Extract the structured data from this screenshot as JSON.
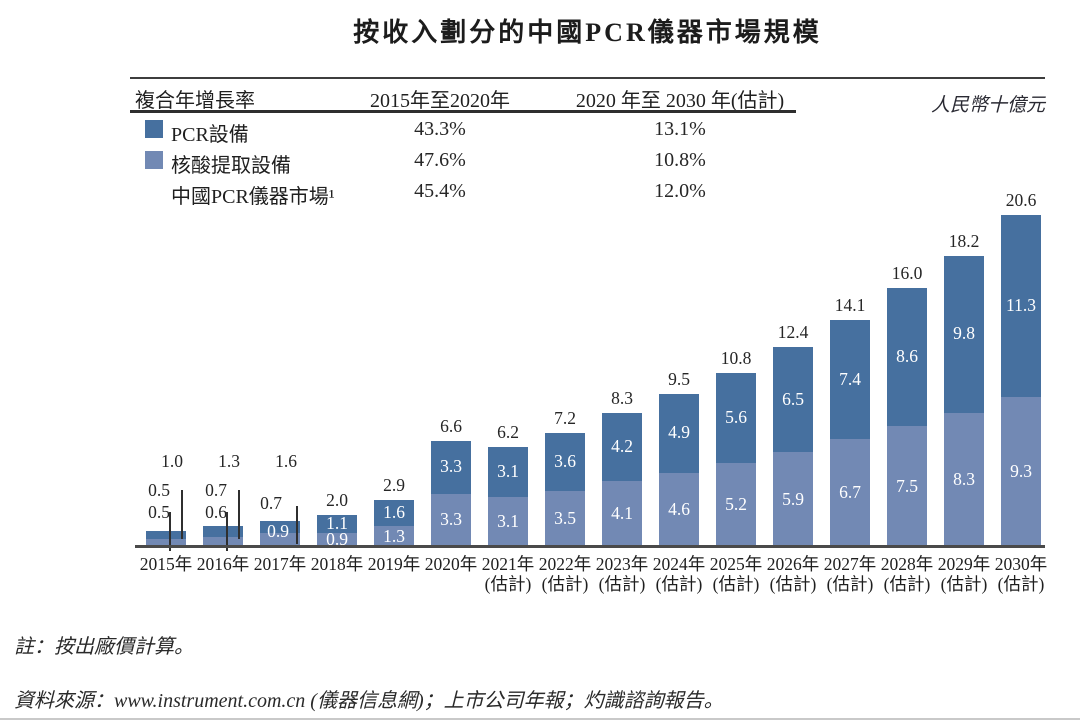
{
  "page": {
    "title": "按收入劃分的中國PCR儀器市場規模",
    "unit_label": "人民幣十億元",
    "note": "註：按出廠價計算。",
    "source": "資料來源：www.instrument.com.cn (儀器信息網)；上市公司年報；灼識諮詢報告。"
  },
  "colors": {
    "pcr": "#46709f",
    "extraction": "#7289b4",
    "axis": "#4a4a4a",
    "label_text": "#262626"
  },
  "cagr_table": {
    "columns": [
      "複合年增長率",
      "2015年至2020年",
      "2020 年至 2030 年(估計)"
    ],
    "rows": [
      {
        "label": "PCR設備",
        "swatch": "pcr",
        "cagr_2015_2020": "43.3%",
        "cagr_2020_2030": "13.1%"
      },
      {
        "label": "核酸提取設備",
        "swatch": "extraction",
        "cagr_2015_2020": "47.6%",
        "cagr_2020_2030": "10.8%"
      },
      {
        "label": "中國PCR儀器市場¹",
        "swatch": "none",
        "cagr_2015_2020": "45.4%",
        "cagr_2020_2030": "12.0%"
      }
    ]
  },
  "chart_data": {
    "type": "bar",
    "stacked": true,
    "title": "按收入劃分的中國PCR儀器市場規模",
    "ylabel": "人民幣十億元",
    "ylim": [
      0,
      20.6
    ],
    "grid": false,
    "categories": [
      {
        "year": "2015年",
        "estimate": false
      },
      {
        "year": "2016年",
        "estimate": false
      },
      {
        "year": "2017年",
        "estimate": false
      },
      {
        "year": "2018年",
        "estimate": false
      },
      {
        "year": "2019年",
        "estimate": false
      },
      {
        "year": "2020年",
        "estimate": false
      },
      {
        "year": "2021年",
        "estimate": true
      },
      {
        "year": "2022年",
        "estimate": true
      },
      {
        "year": "2023年",
        "estimate": true
      },
      {
        "year": "2024年",
        "estimate": true
      },
      {
        "year": "2025年",
        "estimate": true
      },
      {
        "year": "2026年",
        "estimate": true
      },
      {
        "year": "2027年",
        "estimate": true
      },
      {
        "year": "2028年",
        "estimate": true
      },
      {
        "year": "2029年",
        "estimate": true
      },
      {
        "year": "2030年",
        "estimate": true
      }
    ],
    "estimate_suffix": "(估計)",
    "series": [
      {
        "name": "PCR設備",
        "stack_position": "top",
        "color_key": "pcr",
        "values": [
          0.5,
          0.7,
          0.7,
          1.1,
          1.6,
          3.3,
          3.1,
          3.6,
          4.2,
          4.9,
          5.6,
          6.5,
          7.4,
          8.6,
          9.8,
          11.3
        ]
      },
      {
        "name": "核酸提取設備",
        "stack_position": "bottom",
        "color_key": "extraction",
        "values": [
          0.5,
          0.6,
          0.9,
          0.9,
          1.3,
          3.3,
          3.1,
          3.5,
          4.1,
          4.6,
          5.2,
          5.9,
          6.7,
          7.5,
          8.3,
          9.3
        ]
      }
    ],
    "totals": [
      1.0,
      1.3,
      1.6,
      2.0,
      2.9,
      6.6,
      6.2,
      7.2,
      8.3,
      9.5,
      10.8,
      12.4,
      14.1,
      16.0,
      18.2,
      20.6
    ],
    "value_label_layout": [
      "outside",
      "outside",
      "mixed",
      "inside",
      "inside",
      "inside",
      "inside",
      "inside",
      "inside",
      "inside",
      "inside",
      "inside",
      "inside",
      "inside",
      "inside",
      "inside"
    ]
  }
}
